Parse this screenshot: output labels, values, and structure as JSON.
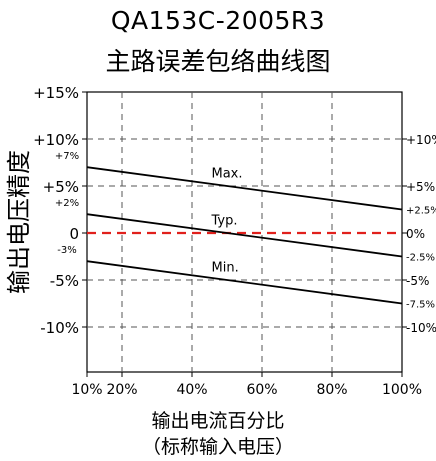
{
  "chart_data": {
    "type": "line",
    "title": "QA153C-2005R3",
    "subtitle": "主路误差包络曲线图",
    "xlabel": "输出电流百分比",
    "xlabel_sub": "（标称输入电压）",
    "ylabel": "输出电压精度",
    "xlim": [
      10,
      100
    ],
    "ylim": [
      -15,
      15
    ],
    "grid": true,
    "x_ticks": [
      {
        "value": 10,
        "label": "10%"
      },
      {
        "value": 20,
        "label": "20%"
      },
      {
        "value": 40,
        "label": "40%"
      },
      {
        "value": 60,
        "label": "60%"
      },
      {
        "value": 80,
        "label": "80%"
      },
      {
        "value": 100,
        "label": "100%"
      }
    ],
    "y_ticks_left": [
      {
        "value": 15,
        "label": "+15%"
      },
      {
        "value": 10,
        "label": "+10%"
      },
      {
        "value": 5,
        "label": "+5%"
      },
      {
        "value": 0,
        "label": "0"
      },
      {
        "value": -5,
        "label": "-5%"
      },
      {
        "value": -10,
        "label": "-10%"
      }
    ],
    "y_ticks_right": [
      {
        "value": 10,
        "label": "+10%"
      },
      {
        "value": 5,
        "label": "+5%"
      },
      {
        "value": 0,
        "label": "0%"
      },
      {
        "value": -5,
        "label": "-5%"
      },
      {
        "value": -10,
        "label": "-10%"
      }
    ],
    "series": [
      {
        "name": "Max.",
        "x": [
          10,
          100
        ],
        "values": [
          7,
          2.5
        ],
        "color": "#000000",
        "dash": false,
        "start_label": "+7%",
        "end_label": "+2.5%"
      },
      {
        "name": "Typ.",
        "x": [
          10,
          100
        ],
        "values": [
          2,
          -2.5
        ],
        "color": "#000000",
        "dash": false,
        "start_label": "+2%",
        "end_label": "-2.5%"
      },
      {
        "name": "Min.",
        "x": [
          10,
          100
        ],
        "values": [
          -3,
          -7.5
        ],
        "color": "#000000",
        "dash": false,
        "start_label": "-3%",
        "end_label": "-7.5%"
      }
    ],
    "reference_line": {
      "value": 0,
      "color": "#e0201c"
    }
  }
}
